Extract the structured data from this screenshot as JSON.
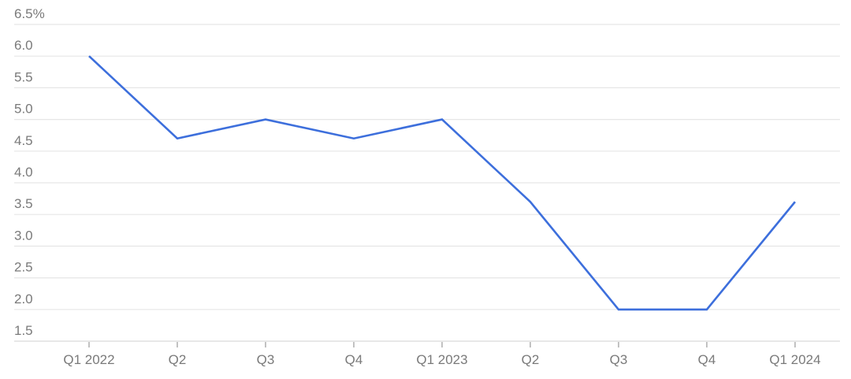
{
  "chart_data": {
    "type": "line",
    "title": "",
    "xlabel": "",
    "ylabel": "",
    "categories": [
      "Q1 2022",
      "Q2",
      "Q3",
      "Q4",
      "Q1 2023",
      "Q2",
      "Q3",
      "Q4",
      "Q1 2024"
    ],
    "series": [
      {
        "values": [
          6.0,
          4.7,
          5.0,
          4.7,
          5.0,
          3.7,
          2.0,
          2.0,
          3.7
        ],
        "color": "#3d6fdc"
      }
    ],
    "ylim": [
      1.5,
      6.5
    ],
    "yticks": [
      "1.5",
      "2.0",
      "2.5",
      "3.0",
      "3.5",
      "4.0",
      "4.5",
      "5.0",
      "5.5",
      "6.0",
      "6.5%"
    ],
    "ytick_values": [
      1.5,
      2.0,
      2.5,
      3.0,
      3.5,
      4.0,
      4.5,
      5.0,
      5.5,
      6.0,
      6.5
    ],
    "grid": true,
    "legend": "none"
  }
}
